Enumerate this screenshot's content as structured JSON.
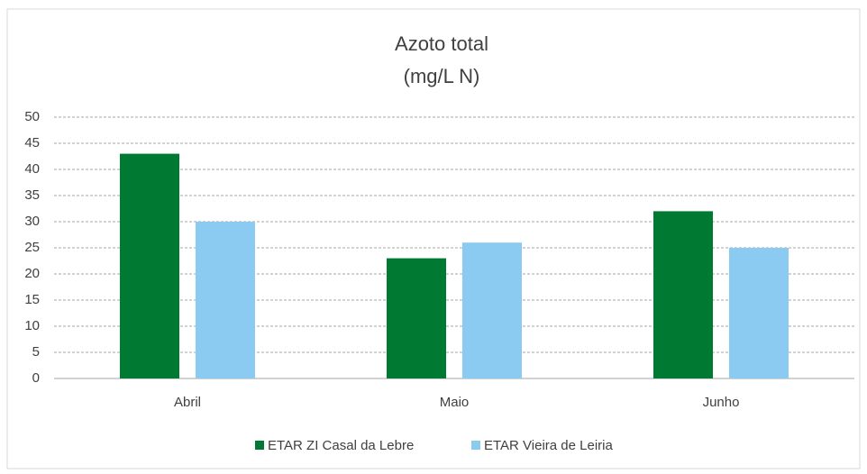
{
  "chart_data": {
    "type": "bar",
    "title": "Azoto total",
    "subtitle": "(mg/L N)",
    "categories": [
      "Abril",
      "Maio",
      "Junho"
    ],
    "series": [
      {
        "name": "ETAR ZI Casal da Lebre",
        "color": "#007a33",
        "values": [
          43,
          23,
          32
        ]
      },
      {
        "name": "ETAR Vieira de Leiria",
        "color": "#8ccbf1",
        "values": [
          30,
          26,
          25
        ]
      }
    ],
    "ylim": [
      0,
      50
    ],
    "yticks": [
      0,
      5,
      10,
      15,
      20,
      25,
      30,
      35,
      40,
      45,
      50
    ],
    "grid": true,
    "legend": "bottom"
  }
}
